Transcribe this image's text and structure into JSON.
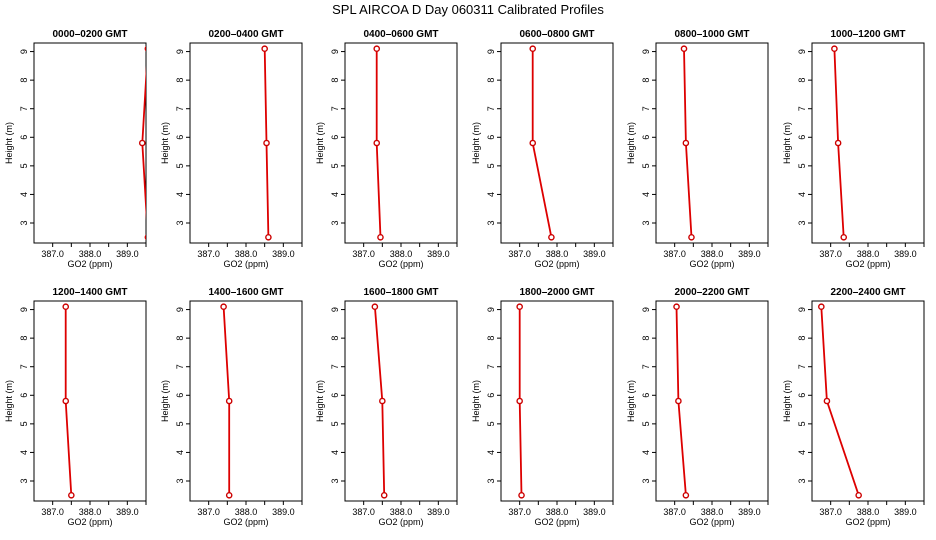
{
  "title": "SPL AIRCOA D  Day 060311  Calibrated Profiles",
  "style": {
    "line_color": "#dd0000",
    "point_color": "#cc0000",
    "axis_color": "#000000"
  },
  "chart_data": [
    {
      "type": "line",
      "title": "0000–0200 GMT",
      "xlabel": "GO2 (ppm)",
      "ylabel": "Height (m)",
      "xlim": [
        386.5,
        389.5
      ],
      "ylim": [
        2.3,
        9.3
      ],
      "x_ticks": [
        387.0,
        388.0,
        389.0
      ],
      "x_tick_labels": [
        "387.0",
        "388.0",
        "389.0"
      ],
      "y_ticks": [
        3,
        4,
        5,
        6,
        7,
        8,
        9
      ],
      "y_tick_labels": [
        "3",
        "4",
        "5",
        "6",
        "7",
        "8",
        "9"
      ],
      "series": [
        {
          "x": [
            389.55,
            389.4,
            389.55
          ],
          "y": [
            9.1,
            5.8,
            2.5
          ]
        }
      ]
    },
    {
      "type": "line",
      "title": "0200–0400 GMT",
      "xlabel": "GO2 (ppm)",
      "ylabel": "Height (m)",
      "xlim": [
        386.5,
        389.5
      ],
      "ylim": [
        2.3,
        9.3
      ],
      "x_ticks": [
        387.0,
        388.0,
        389.0
      ],
      "x_tick_labels": [
        "387.0",
        "388.0",
        "389.0"
      ],
      "y_ticks": [
        3,
        4,
        5,
        6,
        7,
        8,
        9
      ],
      "y_tick_labels": [
        "3",
        "4",
        "5",
        "6",
        "7",
        "8",
        "9"
      ],
      "series": [
        {
          "x": [
            388.5,
            388.55,
            388.6
          ],
          "y": [
            9.1,
            5.8,
            2.5
          ]
        }
      ]
    },
    {
      "type": "line",
      "title": "0400–0600 GMT",
      "xlabel": "GO2 (ppm)",
      "ylabel": "Height (m)",
      "xlim": [
        386.5,
        389.5
      ],
      "ylim": [
        2.3,
        9.3
      ],
      "x_ticks": [
        387.0,
        388.0,
        389.0
      ],
      "x_tick_labels": [
        "387.0",
        "388.0",
        "389.0"
      ],
      "y_ticks": [
        3,
        4,
        5,
        6,
        7,
        8,
        9
      ],
      "y_tick_labels": [
        "3",
        "4",
        "5",
        "6",
        "7",
        "8",
        "9"
      ],
      "series": [
        {
          "x": [
            387.35,
            387.35,
            387.45
          ],
          "y": [
            9.1,
            5.8,
            2.5
          ]
        }
      ]
    },
    {
      "type": "line",
      "title": "0600–0800 GMT",
      "xlabel": "GO2 (ppm)",
      "ylabel": "Height (m)",
      "xlim": [
        386.5,
        389.5
      ],
      "ylim": [
        2.3,
        9.3
      ],
      "x_ticks": [
        387.0,
        388.0,
        389.0
      ],
      "x_tick_labels": [
        "387.0",
        "388.0",
        "389.0"
      ],
      "y_ticks": [
        3,
        4,
        5,
        6,
        7,
        8,
        9
      ],
      "y_tick_labels": [
        "3",
        "4",
        "5",
        "6",
        "7",
        "8",
        "9"
      ],
      "series": [
        {
          "x": [
            387.35,
            387.35,
            387.85
          ],
          "y": [
            9.1,
            5.8,
            2.5
          ]
        }
      ]
    },
    {
      "type": "line",
      "title": "0800–1000 GMT",
      "xlabel": "GO2 (ppm)",
      "ylabel": "Height (m)",
      "xlim": [
        386.5,
        389.5
      ],
      "ylim": [
        2.3,
        9.3
      ],
      "x_ticks": [
        387.0,
        388.0,
        389.0
      ],
      "x_tick_labels": [
        "387.0",
        "388.0",
        "389.0"
      ],
      "y_ticks": [
        3,
        4,
        5,
        6,
        7,
        8,
        9
      ],
      "y_tick_labels": [
        "3",
        "4",
        "5",
        "6",
        "7",
        "8",
        "9"
      ],
      "series": [
        {
          "x": [
            387.25,
            387.3,
            387.45
          ],
          "y": [
            9.1,
            5.8,
            2.5
          ]
        }
      ]
    },
    {
      "type": "line",
      "title": "1000–1200 GMT",
      "xlabel": "GO2 (ppm)",
      "ylabel": "Height (m)",
      "xlim": [
        386.5,
        389.5
      ],
      "ylim": [
        2.3,
        9.3
      ],
      "x_ticks": [
        387.0,
        388.0,
        389.0
      ],
      "x_tick_labels": [
        "387.0",
        "388.0",
        "389.0"
      ],
      "y_ticks": [
        3,
        4,
        5,
        6,
        7,
        8,
        9
      ],
      "y_tick_labels": [
        "3",
        "4",
        "5",
        "6",
        "7",
        "8",
        "9"
      ],
      "series": [
        {
          "x": [
            387.1,
            387.2,
            387.35
          ],
          "y": [
            9.1,
            5.8,
            2.5
          ]
        }
      ]
    },
    {
      "type": "line",
      "title": "1200–1400 GMT",
      "xlabel": "GO2 (ppm)",
      "ylabel": "Height (m)",
      "xlim": [
        386.5,
        389.5
      ],
      "ylim": [
        2.3,
        9.3
      ],
      "x_ticks": [
        387.0,
        388.0,
        389.0
      ],
      "x_tick_labels": [
        "387.0",
        "388.0",
        "389.0"
      ],
      "y_ticks": [
        3,
        4,
        5,
        6,
        7,
        8,
        9
      ],
      "y_tick_labels": [
        "3",
        "4",
        "5",
        "6",
        "7",
        "8",
        "9"
      ],
      "series": [
        {
          "x": [
            387.35,
            387.35,
            387.5
          ],
          "y": [
            9.1,
            5.8,
            2.5
          ]
        }
      ]
    },
    {
      "type": "line",
      "title": "1400–1600 GMT",
      "xlabel": "GO2 (ppm)",
      "ylabel": "Height (m)",
      "xlim": [
        386.5,
        389.5
      ],
      "ylim": [
        2.3,
        9.3
      ],
      "x_ticks": [
        387.0,
        388.0,
        389.0
      ],
      "x_tick_labels": [
        "387.0",
        "388.0",
        "389.0"
      ],
      "y_ticks": [
        3,
        4,
        5,
        6,
        7,
        8,
        9
      ],
      "y_tick_labels": [
        "3",
        "4",
        "5",
        "6",
        "7",
        "8",
        "9"
      ],
      "series": [
        {
          "x": [
            387.4,
            387.55,
            387.55
          ],
          "y": [
            9.1,
            5.8,
            2.5
          ]
        }
      ]
    },
    {
      "type": "line",
      "title": "1600–1800 GMT",
      "xlabel": "GO2 (ppm)",
      "ylabel": "Height (m)",
      "xlim": [
        386.5,
        389.5
      ],
      "ylim": [
        2.3,
        9.3
      ],
      "x_ticks": [
        387.0,
        388.0,
        389.0
      ],
      "x_tick_labels": [
        "387.0",
        "388.0",
        "389.0"
      ],
      "y_ticks": [
        3,
        4,
        5,
        6,
        7,
        8,
        9
      ],
      "y_tick_labels": [
        "3",
        "4",
        "5",
        "6",
        "7",
        "8",
        "9"
      ],
      "series": [
        {
          "x": [
            387.3,
            387.5,
            387.55
          ],
          "y": [
            9.1,
            5.8,
            2.5
          ]
        }
      ]
    },
    {
      "type": "line",
      "title": "1800–2000 GMT",
      "xlabel": "GO2 (ppm)",
      "ylabel": "Height (m)",
      "xlim": [
        386.5,
        389.5
      ],
      "ylim": [
        2.3,
        9.3
      ],
      "x_ticks": [
        387.0,
        388.0,
        389.0
      ],
      "x_tick_labels": [
        "387.0",
        "388.0",
        "389.0"
      ],
      "y_ticks": [
        3,
        4,
        5,
        6,
        7,
        8,
        9
      ],
      "y_tick_labels": [
        "3",
        "4",
        "5",
        "6",
        "7",
        "8",
        "9"
      ],
      "series": [
        {
          "x": [
            387.0,
            387.0,
            387.05
          ],
          "y": [
            9.1,
            5.8,
            2.5
          ]
        }
      ]
    },
    {
      "type": "line",
      "title": "2000–2200 GMT",
      "xlabel": "GO2 (ppm)",
      "ylabel": "Height (m)",
      "xlim": [
        386.5,
        389.5
      ],
      "ylim": [
        2.3,
        9.3
      ],
      "x_ticks": [
        387.0,
        388.0,
        389.0
      ],
      "x_tick_labels": [
        "387.0",
        "388.0",
        "389.0"
      ],
      "y_ticks": [
        3,
        4,
        5,
        6,
        7,
        8,
        9
      ],
      "y_tick_labels": [
        "3",
        "4",
        "5",
        "6",
        "7",
        "8",
        "9"
      ],
      "series": [
        {
          "x": [
            387.05,
            387.1,
            387.3
          ],
          "y": [
            9.1,
            5.8,
            2.5
          ]
        }
      ]
    },
    {
      "type": "line",
      "title": "2200–2400 GMT",
      "xlabel": "GO2 (ppm)",
      "ylabel": "Height (m)",
      "xlim": [
        386.5,
        389.5
      ],
      "ylim": [
        2.3,
        9.3
      ],
      "x_ticks": [
        387.0,
        388.0,
        389.0
      ],
      "x_tick_labels": [
        "387.0",
        "388.0",
        "389.0"
      ],
      "y_ticks": [
        3,
        4,
        5,
        6,
        7,
        8,
        9
      ],
      "y_tick_labels": [
        "3",
        "4",
        "5",
        "6",
        "7",
        "8",
        "9"
      ],
      "series": [
        {
          "x": [
            386.75,
            386.9,
            387.75
          ],
          "y": [
            9.1,
            5.8,
            2.5
          ]
        }
      ]
    }
  ]
}
